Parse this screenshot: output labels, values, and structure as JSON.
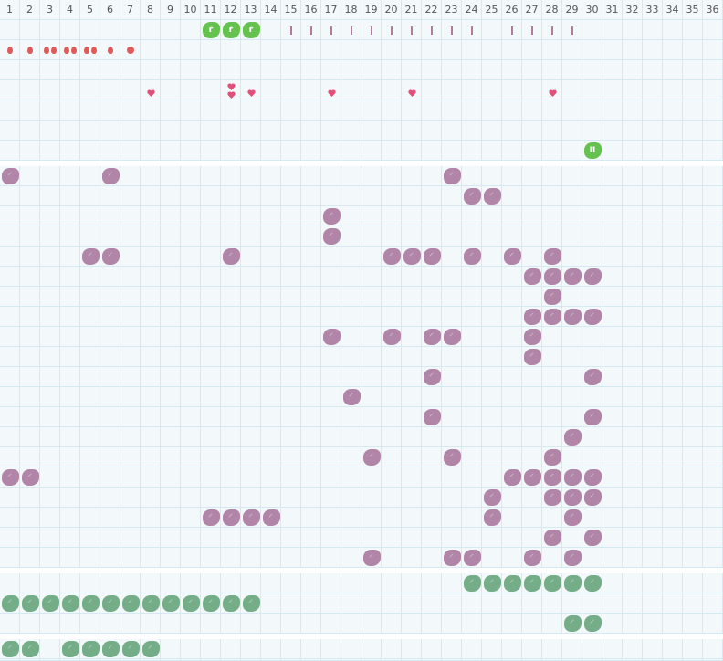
{
  "columns": [
    "1",
    "2",
    "3",
    "4",
    "5",
    "6",
    "7",
    "8",
    "9",
    "10",
    "11",
    "12",
    "13",
    "14",
    "15",
    "16",
    "17",
    "18",
    "19",
    "20",
    "21",
    "22",
    "23",
    "24",
    "25",
    "26",
    "27",
    "28",
    "29",
    "30",
    "31",
    "32",
    "33",
    "34",
    "35",
    "36"
  ],
  "colors": {
    "purple": "#b085a8",
    "sage": "#74ad88",
    "green": "#66c24e",
    "red": "#e05a5a",
    "heart": "#e0507a",
    "bar": "#b07a9a",
    "grid": "#d5e9f3"
  },
  "top_section": {
    "green_marks": {
      "row": 0,
      "cols": [
        11,
        12,
        13
      ],
      "label": "r"
    },
    "bar_marks": {
      "row": 0,
      "cols": [
        15,
        16,
        17,
        18,
        19,
        20,
        21,
        22,
        23,
        24,
        26,
        27,
        28,
        29
      ]
    },
    "drops": {
      "row": 1,
      "items": [
        {
          "col": 1,
          "count": 1
        },
        {
          "col": 2,
          "count": 1
        },
        {
          "col": 3,
          "count": 2
        },
        {
          "col": 4,
          "count": 2
        },
        {
          "col": 5,
          "count": 2
        },
        {
          "col": 6,
          "count": 1
        },
        {
          "col": 7,
          "count": 0,
          "shape": "circle"
        }
      ]
    },
    "hearts": {
      "row": 3,
      "items": [
        {
          "col": 8,
          "count": 1
        },
        {
          "col": 12,
          "count": 2
        },
        {
          "col": 13,
          "count": 1
        },
        {
          "col": 17,
          "count": 1
        },
        {
          "col": 21,
          "count": 1
        },
        {
          "col": 28,
          "count": 1
        }
      ]
    },
    "pause_mark": {
      "row": 6,
      "col": 30,
      "label": "II"
    }
  },
  "purple_section": [
    [
      1,
      6,
      23
    ],
    [
      24,
      25
    ],
    [
      17
    ],
    [
      17
    ],
    [
      5,
      6,
      12,
      20,
      21,
      22,
      24,
      26,
      28
    ],
    [
      27,
      28,
      29,
      30
    ],
    [
      28
    ],
    [
      27,
      28,
      29,
      30
    ],
    [
      17,
      20,
      22,
      23,
      27
    ],
    [
      27
    ],
    [
      22,
      30
    ],
    [
      18
    ],
    [
      22,
      30
    ],
    [
      29
    ],
    [
      19,
      23,
      28
    ],
    [
      1,
      2,
      26,
      27,
      28,
      29,
      30
    ],
    [
      25,
      28,
      29,
      30
    ],
    [
      11,
      12,
      13,
      14,
      25,
      29
    ],
    [
      28,
      30
    ],
    [
      19,
      23,
      24,
      27,
      29
    ]
  ],
  "green_section": [
    [
      24,
      25,
      26,
      27,
      28,
      29,
      30
    ],
    [
      1,
      2,
      3,
      4,
      5,
      6,
      7,
      8,
      9,
      10,
      11,
      12,
      13
    ],
    [
      29,
      30
    ]
  ],
  "bottom_section": [
    [
      1,
      2,
      4,
      5,
      6,
      7,
      8
    ]
  ]
}
